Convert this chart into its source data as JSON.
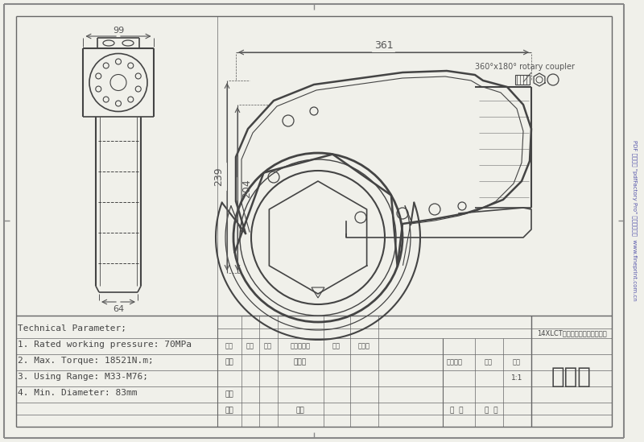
{
  "bg_color": "#f0f0ea",
  "paper_color": "#f5f5f0",
  "border_color": "#666666",
  "line_color": "#444444",
  "dim_color": "#555555",
  "tech_params": [
    "Technical Parameter;",
    "1. Rated working pressure: 70MPa",
    "2. Max. Torque: 18521N.m;",
    "3. Using Range: M33-M76;",
    "4. Min. Diameter: 83mm"
  ],
  "table_labels": {
    "row1": [
      "标记",
      "数量",
      "分区",
      "更改文件号",
      "签名",
      "年月日"
    ],
    "row2_left": "设计",
    "row2_mid": "标准化",
    "row2_right_labels": [
      "阶段标记",
      "重量",
      "比例"
    ],
    "row3_right": "1:1",
    "row4_left": "审核",
    "row5_left": "工艺",
    "row5_mid": "批准",
    "row5_right": [
      "共  页",
      "第  页"
    ],
    "title_cn": "示意图",
    "product_cn": "14XLCT超薄中空式液压扭矩板手"
  },
  "dim_361": "361",
  "dim_99": "99",
  "dim_239": "239",
  "dim_204": "204",
  "dim_64": "64",
  "annotation_rotary": "360°x180° rotary coupler"
}
